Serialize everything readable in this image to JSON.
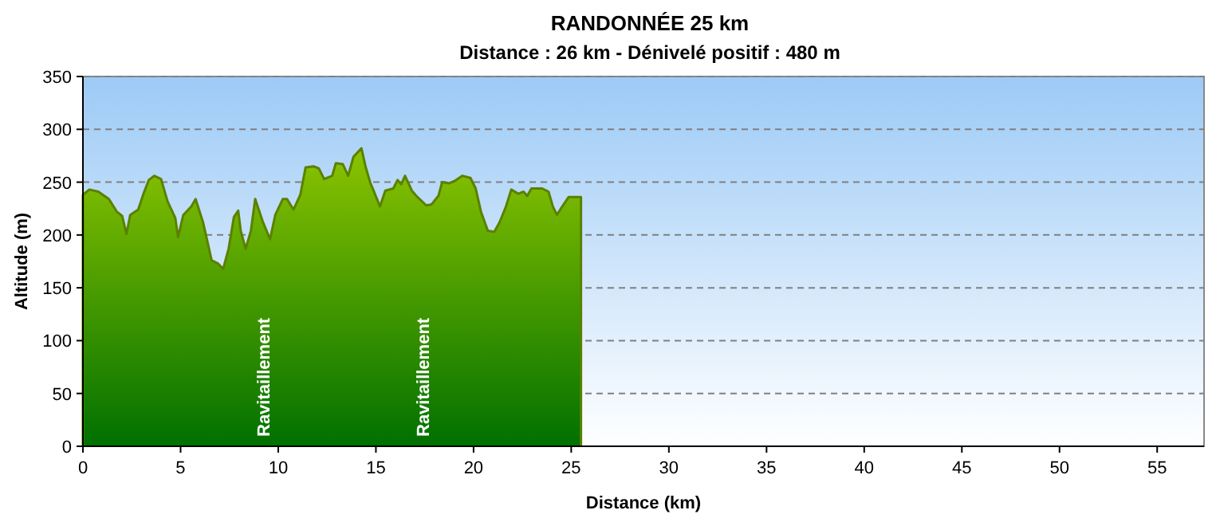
{
  "chart_data": {
    "type": "area",
    "title": "RANDONNÉE 25 km",
    "subtitle": "Distance : 26 km - Dénivelé positif : 480 m",
    "xlabel": "Distance (km)",
    "ylabel": "Altitude (m)",
    "xlim": [
      0,
      57.4
    ],
    "xticks": [
      0,
      5,
      10,
      15,
      20,
      25,
      30,
      35,
      40,
      45,
      50,
      55
    ],
    "ylim": [
      0,
      350
    ],
    "yticks": [
      0,
      50,
      100,
      150,
      200,
      250,
      300,
      350
    ],
    "grid": "y",
    "annotations": [
      "Ravitaillement",
      "Ravitaillement"
    ],
    "series": [
      {
        "color": "#8cc400",
        "x": [
          0,
          0.33,
          0.79,
          1.33,
          1.74,
          2.01,
          2.23,
          2.42,
          2.83,
          3.1,
          3.37,
          3.65,
          4.0,
          4.33,
          4.73,
          4.87,
          5.14,
          5.55,
          5.77,
          6.15,
          6.59,
          6.91,
          7.18,
          7.46,
          7.73,
          7.95,
          8.08,
          8.33,
          8.6,
          8.82,
          9.22,
          9.58,
          9.85,
          10.23,
          10.45,
          10.78,
          11.13,
          11.4,
          11.81,
          12.08,
          12.35,
          12.76,
          12.95,
          13.31,
          13.58,
          13.85,
          14.26,
          14.48,
          14.72,
          14.88,
          15.21,
          15.48,
          15.89,
          16.11,
          16.3,
          16.49,
          16.84,
          17.12,
          17.58,
          17.85,
          18.2,
          18.39,
          18.75,
          19.02,
          19.43,
          19.84,
          20.11,
          20.38,
          20.73,
          21.06,
          21.33,
          21.66,
          21.93,
          22.29,
          22.56,
          22.75,
          22.96,
          23.51,
          23.84,
          24.06,
          24.27,
          24.54,
          24.87,
          25.41,
          25.5
        ],
        "values": [
          238,
          243,
          241,
          234,
          222,
          218,
          201,
          219,
          224,
          239,
          252,
          256,
          253,
          232,
          216,
          198,
          219,
          227,
          234,
          212,
          176,
          173,
          168,
          187,
          217,
          223,
          204,
          187,
          204,
          234,
          212,
          196,
          219,
          234,
          234,
          224,
          238,
          264,
          265,
          263,
          253,
          256,
          268,
          267,
          256,
          274,
          282,
          264,
          249,
          242,
          227,
          242,
          244,
          252,
          248,
          256,
          242,
          236,
          228,
          229,
          237,
          250,
          249,
          251,
          256,
          254,
          244,
          222,
          204,
          203,
          212,
          227,
          243,
          239,
          241,
          237,
          244,
          244,
          241,
          227,
          219,
          227,
          236,
          236,
          236
        ]
      }
    ]
  }
}
